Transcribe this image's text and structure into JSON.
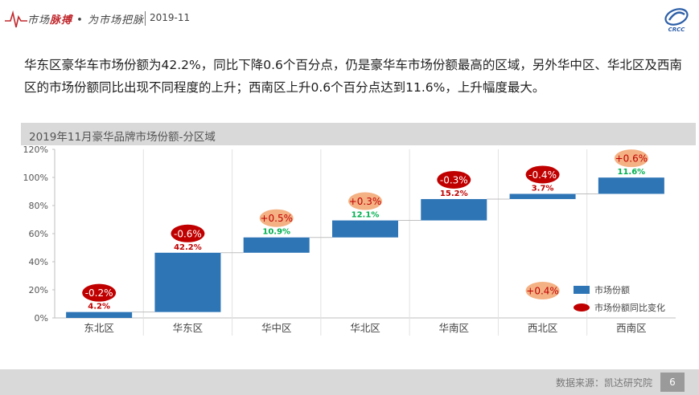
{
  "header": {
    "brand_part1": "市场",
    "brand_part2": "脉搏",
    "brand_sep": "•",
    "brand_part3": "为市场把脉",
    "period": "2019-11"
  },
  "intro_text": "华东区豪华车市场份额为42.2%，同比下降0.6个百分点，仍是豪华车市场份额最高的区域，另外华中区、华北区及西南区的市场份额同比出现不同程度的上升；西南区上升0.6个百分点达到11.6%，上升幅度最大。",
  "chart_data": {
    "type": "bar",
    "title": "2019年11月豪华品牌市场份额-分区域",
    "categories": [
      "东北区",
      "华东区",
      "华中区",
      "华北区",
      "华南区",
      "西北区",
      "西南区"
    ],
    "series": [
      {
        "name": "市场份额",
        "values": [
          4.2,
          42.2,
          10.9,
          12.1,
          15.2,
          3.7,
          11.6
        ],
        "labels": [
          "4.2%",
          "42.2%",
          "10.9%",
          "12.1%",
          "15.2%",
          "3.7%",
          "11.6%"
        ]
      },
      {
        "name": "市场份额同比变化",
        "values": [
          -0.2,
          -0.6,
          0.5,
          0.3,
          -0.3,
          -0.4,
          0.6
        ],
        "labels": [
          "-0.2%",
          "-0.6%",
          "+0.5%",
          "+0.3%",
          "-0.3%",
          "-0.4%",
          "+0.6%"
        ]
      }
    ],
    "waterfall_bases": [
      0,
      4.2,
      46.4,
      57.3,
      69.4,
      84.6,
      88.3
    ],
    "yticks": [
      "0%",
      "20%",
      "40%",
      "60%",
      "80%",
      "100%",
      "120%"
    ],
    "ylim": [
      0,
      120
    ],
    "legend_position": "bottom-right",
    "extra_label": "+0.4%",
    "colors": {
      "bar": "#2e75b6",
      "decrease": "#c00000",
      "increase": "#f4b183",
      "value_decrease": "#c00000",
      "value_increase": "#00b050"
    }
  },
  "footer": {
    "source": "数据来源：凯达研究院",
    "page": "6"
  }
}
